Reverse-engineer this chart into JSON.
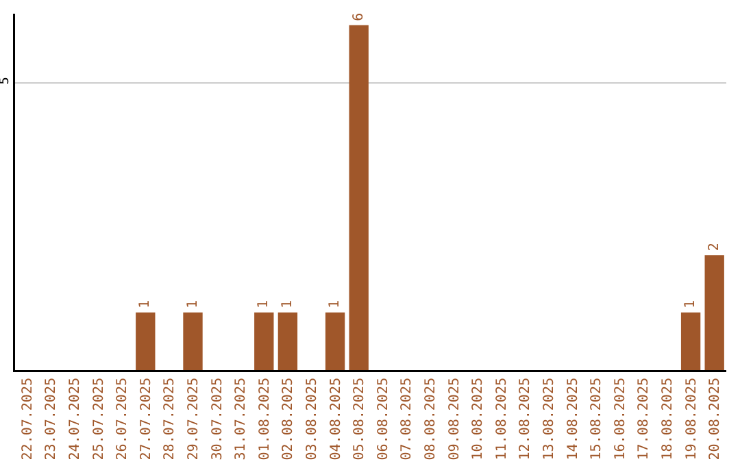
{
  "chart_data": {
    "type": "bar",
    "categories": [
      "22.07.2025",
      "23.07.2025",
      "24.07.2025",
      "25.07.2025",
      "26.07.2025",
      "27.07.2025",
      "28.07.2025",
      "29.07.2025",
      "30.07.2025",
      "31.07.2025",
      "01.08.2025",
      "02.08.2025",
      "03.08.2025",
      "04.08.2025",
      "05.08.2025",
      "06.08.2025",
      "07.08.2025",
      "08.08.2025",
      "09.08.2025",
      "10.08.2025",
      "11.08.2025",
      "12.08.2025",
      "13.08.2025",
      "14.08.2025",
      "15.08.2025",
      "16.08.2025",
      "17.08.2025",
      "18.08.2025",
      "19.08.2025",
      "20.08.2025"
    ],
    "values": [
      0,
      0,
      0,
      0,
      0,
      1,
      0,
      1,
      0,
      0,
      1,
      1,
      0,
      1,
      6,
      0,
      0,
      0,
      0,
      0,
      0,
      0,
      0,
      0,
      0,
      0,
      0,
      0,
      1,
      2
    ],
    "value_labels": [
      null,
      null,
      null,
      null,
      null,
      "1",
      null,
      "1",
      null,
      null,
      "1",
      "1",
      null,
      "1",
      "6",
      null,
      null,
      null,
      null,
      null,
      null,
      null,
      null,
      null,
      null,
      null,
      null,
      null,
      "1",
      "2"
    ],
    "color": "#a0572a",
    "ylim": [
      0,
      6.2
    ],
    "yticks": [
      5
    ],
    "grid": "y"
  }
}
